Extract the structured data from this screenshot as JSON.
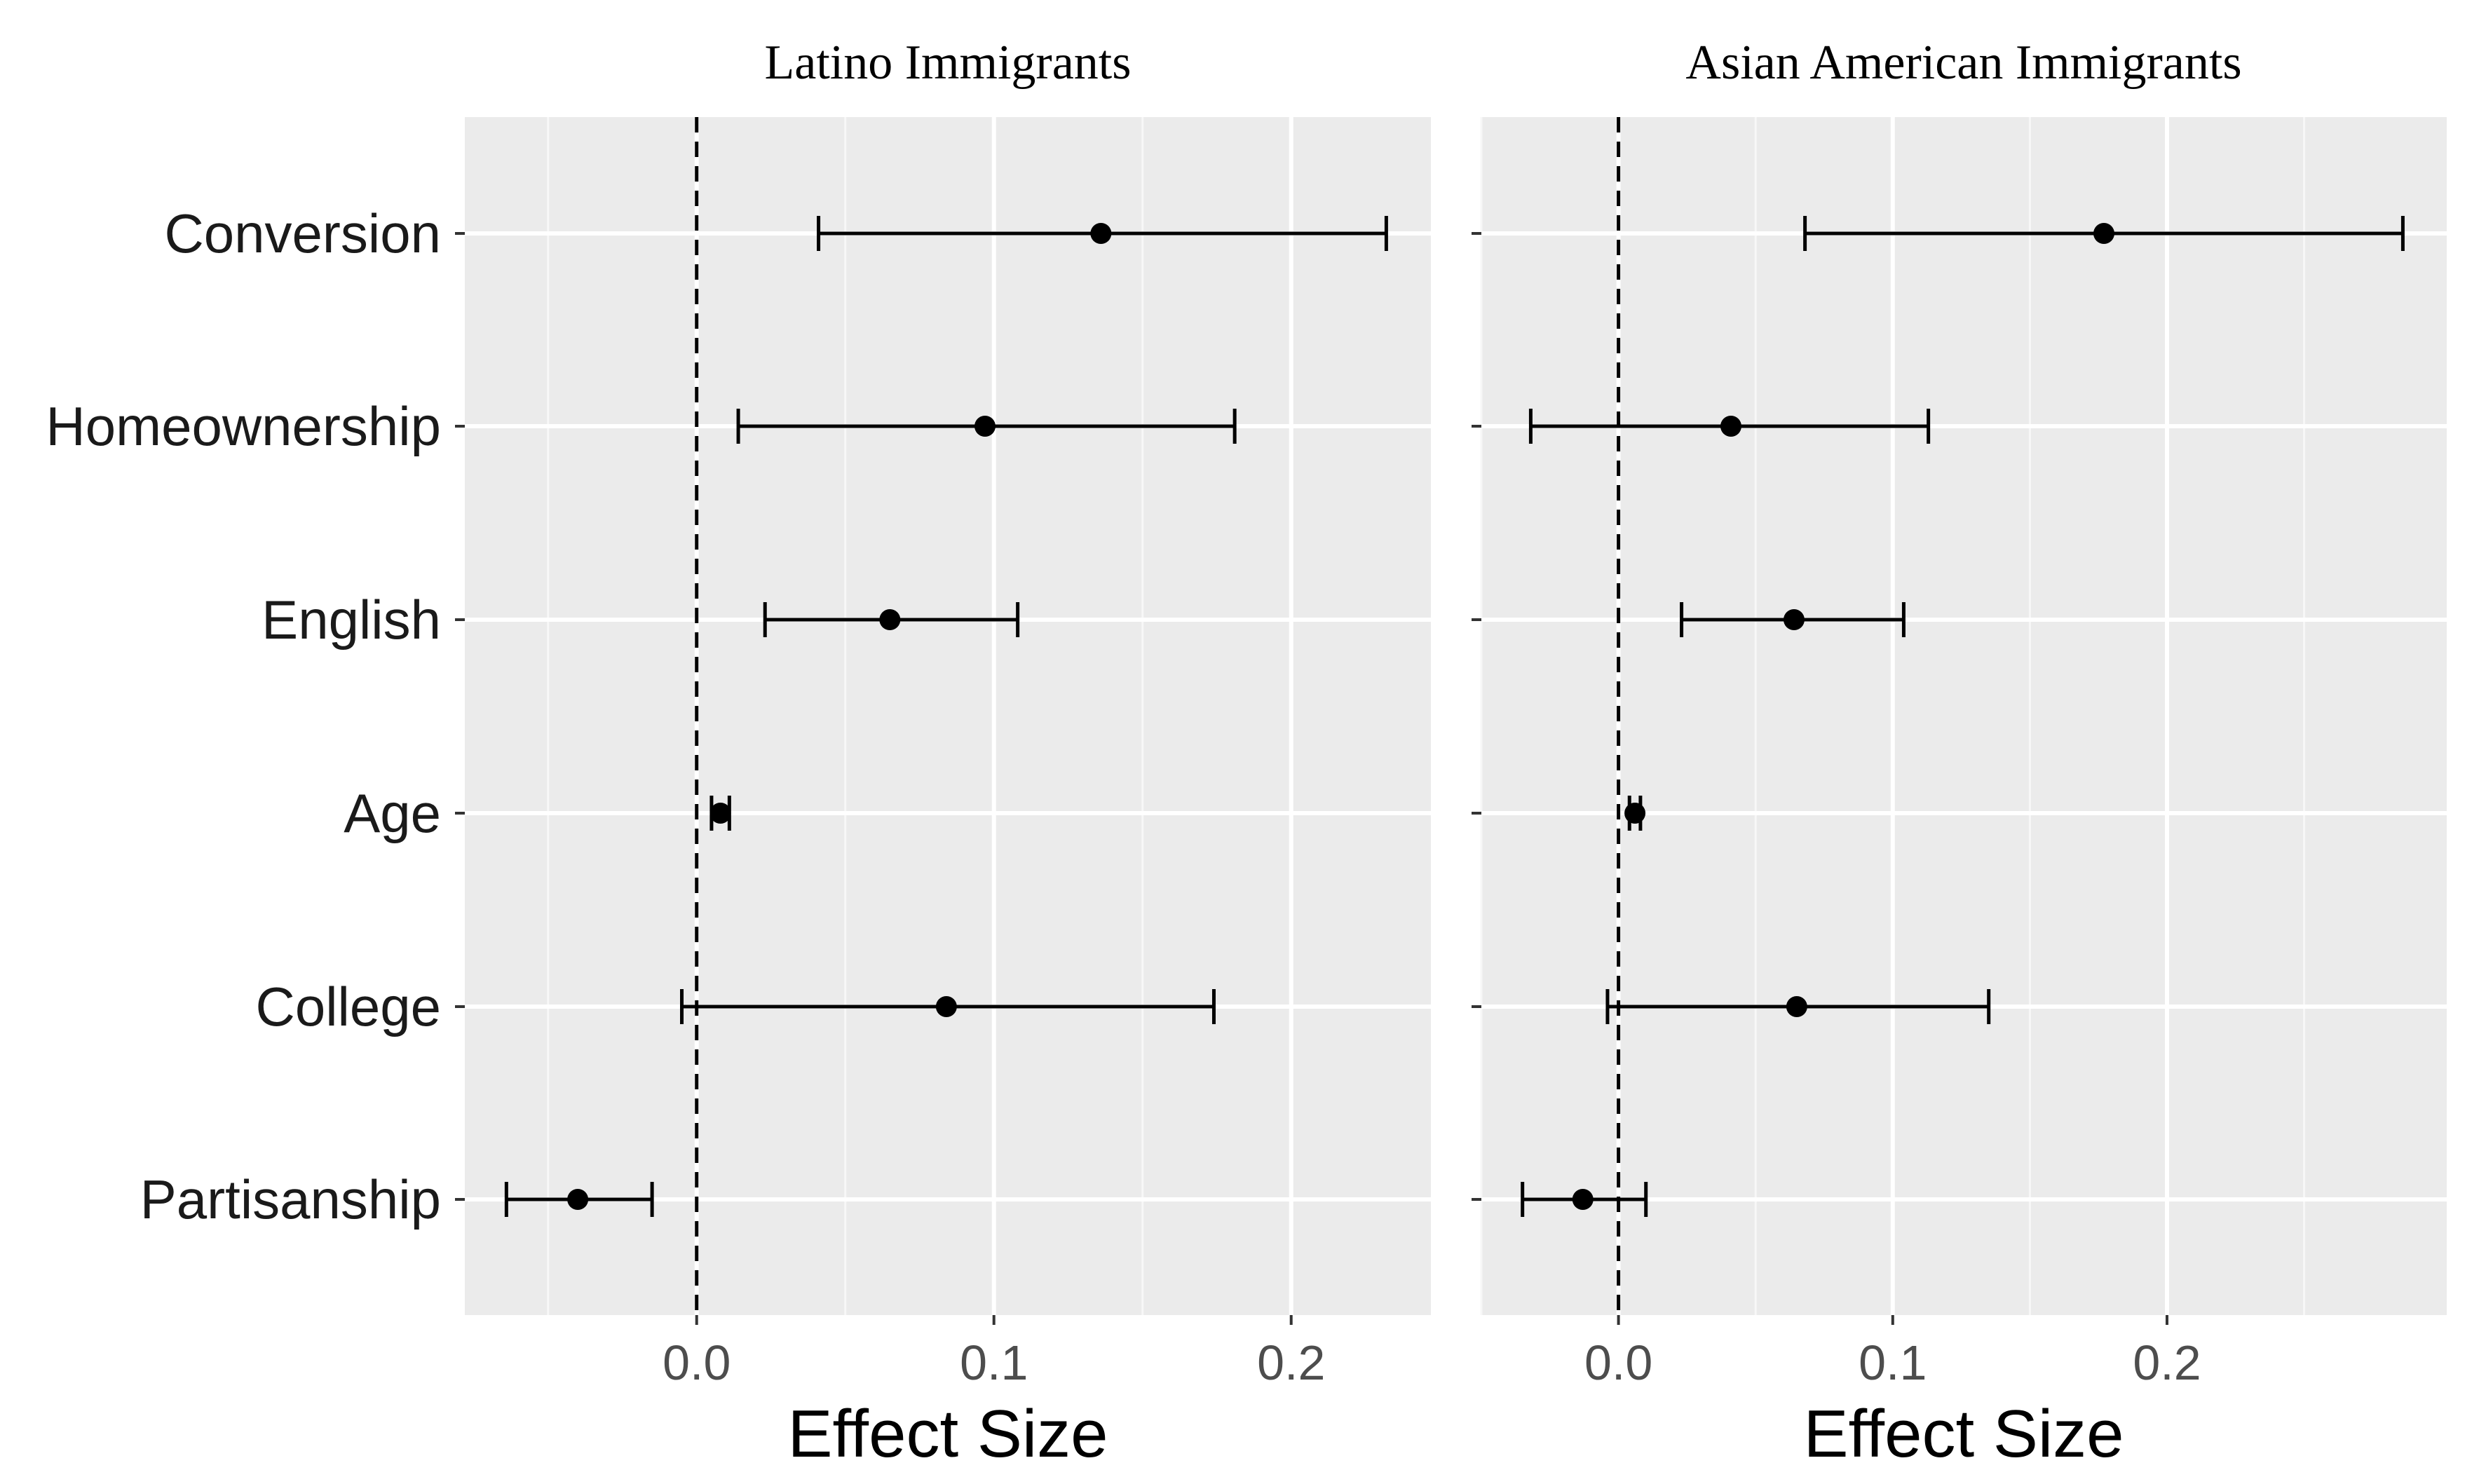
{
  "chart_data": [
    {
      "type": "coefficient-plot",
      "title": "Latino Immigrants",
      "xlabel": "Effect Size",
      "ylabel": "",
      "xlim": [
        -0.078,
        0.247
      ],
      "xticks": [
        0.0,
        0.1,
        0.2
      ],
      "xtick_labels": [
        "0.0",
        "0.1",
        "0.2"
      ],
      "reference_line": 0.0,
      "grid": true,
      "categories": [
        "Conversion",
        "Homeownership",
        "English",
        "Age",
        "College",
        "Partisanship"
      ],
      "estimates": [
        0.136,
        0.097,
        0.065,
        0.008,
        0.084,
        -0.04
      ],
      "ci_low": [
        0.041,
        0.014,
        0.023,
        0.005,
        -0.005,
        -0.064
      ],
      "ci_high": [
        0.232,
        0.181,
        0.108,
        0.011,
        0.174,
        -0.015
      ]
    },
    {
      "type": "coefficient-plot",
      "title": "Asian American Immigrants",
      "xlabel": "Effect Size",
      "ylabel": "",
      "xlim": [
        -0.05,
        0.302
      ],
      "xticks": [
        0.0,
        0.1,
        0.2
      ],
      "xtick_labels": [
        "0.0",
        "0.1",
        "0.2"
      ],
      "reference_line": 0.0,
      "grid": true,
      "categories": [
        "Conversion",
        "Homeownership",
        "English",
        "Age",
        "College",
        "Partisanship"
      ],
      "estimates": [
        0.177,
        0.041,
        0.064,
        0.006,
        0.065,
        -0.013
      ],
      "ci_low": [
        0.068,
        -0.032,
        0.023,
        0.004,
        -0.004,
        -0.035
      ],
      "ci_high": [
        0.286,
        0.113,
        0.104,
        0.008,
        0.135,
        0.01
      ]
    }
  ]
}
